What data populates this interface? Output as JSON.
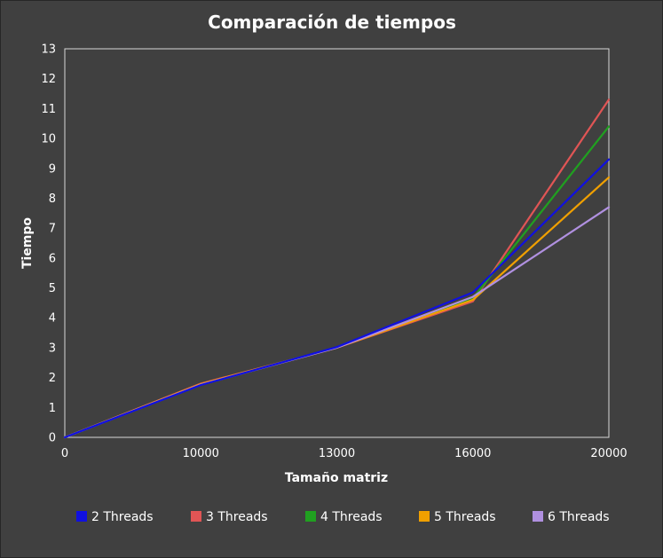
{
  "chart_data": {
    "type": "line",
    "title": "Comparación de tiempos",
    "xlabel": "Tamaño matriz",
    "ylabel": "Tiempo",
    "x": [
      "0",
      "10000",
      "13000",
      "16000",
      "20000"
    ],
    "ylim": [
      0,
      13
    ],
    "yticks": [
      "0",
      "1",
      "2",
      "3",
      "4",
      "5",
      "6",
      "7",
      "8",
      "9",
      "10",
      "11",
      "12",
      "13"
    ],
    "grid": false,
    "legend": "bottom",
    "series": [
      {
        "name": "2 Threads",
        "color": "#1010e0",
        "values": [
          0,
          1.75,
          3.02,
          4.85,
          9.3
        ]
      },
      {
        "name": "3 Threads",
        "color": "#e05555",
        "values": [
          0,
          1.8,
          3.0,
          4.55,
          11.3
        ]
      },
      {
        "name": "4 Threads",
        "color": "#20a020",
        "values": [
          0,
          1.77,
          3.01,
          4.65,
          10.4
        ]
      },
      {
        "name": "5 Threads",
        "color": "#f0a000",
        "values": [
          0,
          1.78,
          3.0,
          4.6,
          8.7
        ]
      },
      {
        "name": "6 Threads",
        "color": "#b090e0",
        "values": [
          0,
          1.76,
          3.0,
          4.7,
          7.7
        ]
      }
    ]
  }
}
